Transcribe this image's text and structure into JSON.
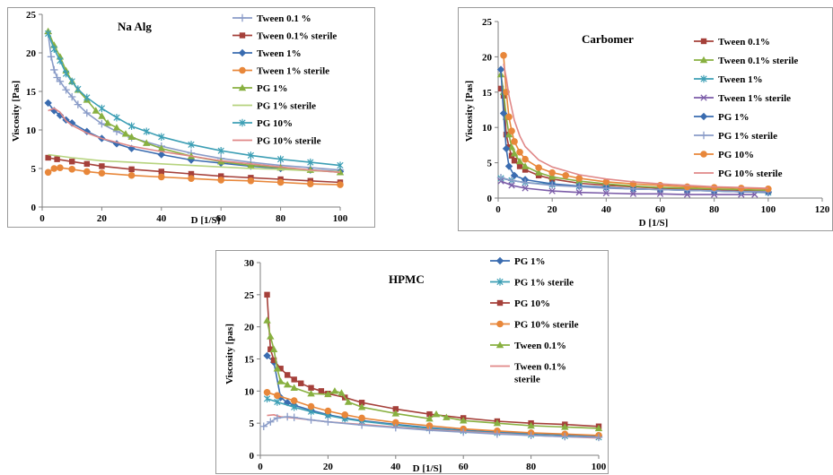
{
  "chart_data": [
    {
      "id": "naalg",
      "type": "line",
      "title": "Na Alg",
      "xlabel": "D [1/S]",
      "ylabel": "Viscosity [Pas]",
      "xlim": [
        0,
        100
      ],
      "ylim": [
        0,
        25
      ],
      "xticks": [
        0,
        20,
        40,
        60,
        80,
        100
      ],
      "yticks": [
        0,
        5,
        10,
        15,
        20,
        25
      ],
      "grid": false,
      "legend_position": "right",
      "series": [
        {
          "name": "Tween 0.1 %",
          "color": "#8a9cc8",
          "marker": "plus",
          "x": [
            2,
            3,
            4,
            5,
            6,
            8,
            10,
            12,
            15,
            20,
            25,
            30,
            40,
            50,
            60,
            70,
            80,
            90,
            100
          ],
          "y": [
            22.5,
            19.5,
            17.8,
            16.8,
            16.3,
            15.2,
            14.3,
            13.3,
            12.2,
            10.8,
            9.8,
            9.0,
            7.9,
            7.0,
            6.3,
            5.8,
            5.4,
            5.1,
            4.8
          ]
        },
        {
          "name": "Tween 0.1% sterile",
          "color": "#a5403a",
          "marker": "square",
          "x": [
            2,
            5,
            10,
            15,
            20,
            30,
            40,
            50,
            60,
            70,
            80,
            90,
            100
          ],
          "y": [
            6.4,
            6.2,
            5.9,
            5.6,
            5.3,
            4.9,
            4.6,
            4.3,
            4.0,
            3.8,
            3.6,
            3.4,
            3.2
          ]
        },
        {
          "name": "Tween 1%",
          "color": "#3a6cb0",
          "marker": "diamond",
          "x": [
            2,
            4,
            6,
            8,
            10,
            15,
            20,
            25,
            30,
            40,
            50,
            60,
            70,
            80,
            90,
            100
          ],
          "y": [
            13.5,
            12.5,
            11.9,
            11.3,
            10.9,
            9.8,
            8.9,
            8.2,
            7.6,
            6.8,
            6.1,
            5.7,
            5.3,
            5.0,
            4.8,
            4.6
          ]
        },
        {
          "name": "Tween 1% sterile",
          "color": "#e8873a",
          "marker": "circle",
          "x": [
            2,
            4,
            6,
            10,
            15,
            20,
            30,
            40,
            50,
            60,
            70,
            80,
            90,
            100
          ],
          "y": [
            4.5,
            5.0,
            5.1,
            4.9,
            4.6,
            4.4,
            4.1,
            3.9,
            3.7,
            3.5,
            3.4,
            3.2,
            3.0,
            2.9
          ]
        },
        {
          "name": "PG 1%",
          "color": "#88b040",
          "marker": "triangle",
          "x": [
            2,
            4,
            6,
            8,
            10,
            12,
            15,
            18,
            20,
            22,
            25,
            28,
            30,
            35,
            40,
            50,
            60,
            70,
            80,
            90,
            100
          ],
          "y": [
            22.8,
            21.0,
            19.5,
            17.7,
            16.3,
            15.2,
            13.9,
            12.5,
            11.8,
            10.9,
            10.3,
            9.5,
            9.1,
            8.3,
            7.6,
            6.6,
            5.9,
            5.4,
            5.1,
            4.8,
            4.5
          ]
        },
        {
          "name": "PG 1% sterile",
          "color": "#b6d37e",
          "marker": "none",
          "x": [
            2,
            10,
            20,
            30,
            40,
            50,
            60,
            70,
            80,
            90,
            100
          ],
          "y": [
            6.8,
            6.4,
            6.0,
            5.8,
            5.6,
            5.4,
            5.2,
            5.0,
            4.9,
            4.7,
            4.6
          ]
        },
        {
          "name": "PG 10%",
          "color": "#3d9fb5",
          "marker": "asterisk",
          "x": [
            2,
            4,
            6,
            8,
            10,
            12,
            15,
            20,
            25,
            30,
            35,
            40,
            50,
            60,
            70,
            80,
            90,
            100
          ],
          "y": [
            22.5,
            20.5,
            19.0,
            17.3,
            16.3,
            15.3,
            14.2,
            12.8,
            11.6,
            10.5,
            9.8,
            9.1,
            8.1,
            7.3,
            6.7,
            6.2,
            5.8,
            5.4
          ]
        },
        {
          "name": "PG 10% sterile",
          "color": "#e08888",
          "marker": "none",
          "x": [
            2,
            4,
            6,
            8,
            10,
            15,
            20,
            30,
            40,
            50,
            60,
            70,
            80,
            90,
            100
          ],
          "y": [
            12.5,
            12.8,
            12.3,
            11.2,
            10.6,
            9.6,
            8.9,
            7.9,
            7.2,
            6.6,
            6.0,
            5.6,
            5.2,
            4.8,
            4.5
          ]
        }
      ]
    },
    {
      "id": "carbomer",
      "type": "line",
      "title": "Carbomer",
      "xlabel": "D [1/S]",
      "ylabel": "Viscosity [Pas]",
      "xlim": [
        0,
        120
      ],
      "ylim": [
        0,
        25
      ],
      "xticks": [
        0,
        20,
        40,
        60,
        80,
        100,
        120
      ],
      "yticks": [
        0,
        5,
        10,
        15,
        20,
        25
      ],
      "grid": false,
      "legend_position": "right",
      "series": [
        {
          "name": "Tween 0.1%",
          "color": "#a5403a",
          "marker": "square",
          "x": [
            1,
            2,
            3,
            4,
            5,
            6,
            8,
            10,
            15,
            20,
            30,
            40,
            50,
            60,
            70,
            80,
            90,
            100
          ],
          "y": [
            15.5,
            14.5,
            9.0,
            7.2,
            6.0,
            5.3,
            4.5,
            4.0,
            3.2,
            2.7,
            2.1,
            1.8,
            1.6,
            1.4,
            1.3,
            1.2,
            1.1,
            1.0
          ]
        },
        {
          "name": "Tween 0.1% sterile",
          "color": "#88b040",
          "marker": "triangle",
          "x": [
            1,
            2,
            3,
            4,
            5,
            6,
            8,
            10,
            15,
            20,
            30,
            40,
            50,
            60,
            70,
            80,
            90,
            100
          ],
          "y": [
            17.5,
            15.0,
            11.5,
            9.0,
            7.2,
            6.3,
            5.2,
            4.5,
            3.6,
            3.0,
            2.4,
            2.0,
            1.7,
            1.5,
            1.4,
            1.3,
            1.2,
            1.1
          ]
        },
        {
          "name": "Tween 1%",
          "color": "#3d9fb5",
          "marker": "asterisk",
          "x": [
            1,
            5,
            10,
            20,
            30,
            40,
            50,
            60,
            70,
            80,
            90,
            100
          ],
          "y": [
            2.8,
            2.5,
            2.2,
            1.9,
            1.7,
            1.5,
            1.3,
            1.2,
            1.1,
            1.0,
            0.9,
            0.8
          ]
        },
        {
          "name": "Tween 1% sterile",
          "color": "#7b5ca8",
          "marker": "cross",
          "x": [
            1,
            5,
            10,
            20,
            30,
            40,
            50,
            60,
            70,
            80,
            90,
            95
          ],
          "y": [
            2.4,
            1.8,
            1.4,
            1.0,
            0.8,
            0.7,
            0.6,
            0.6,
            0.5,
            0.5,
            0.5,
            0.5
          ]
        },
        {
          "name": "PG 1%",
          "color": "#3a6cb0",
          "marker": "diamond",
          "x": [
            1,
            2,
            3,
            4,
            6,
            10,
            20,
            30,
            40,
            50,
            60,
            70,
            80,
            90,
            100
          ],
          "y": [
            18.2,
            12.0,
            7.0,
            4.5,
            3.2,
            2.6,
            2.0,
            1.7,
            1.5,
            1.3,
            1.2,
            1.1,
            1.0,
            0.9,
            0.8
          ]
        },
        {
          "name": "PG 1% sterile",
          "color": "#8a9cc8",
          "marker": "plus",
          "x": [
            1,
            5,
            10,
            20,
            30,
            40,
            50,
            60,
            70,
            80,
            90,
            100
          ],
          "y": [
            2.9,
            2.5,
            2.2,
            1.8,
            1.6,
            1.4,
            1.3,
            1.2,
            1.1,
            1.0,
            0.9,
            0.9
          ]
        },
        {
          "name": "PG 10%",
          "color": "#e8873a",
          "marker": "circle",
          "x": [
            2,
            3,
            4,
            5,
            6,
            8,
            10,
            15,
            20,
            25,
            30,
            40,
            50,
            60,
            70,
            80,
            90,
            100
          ],
          "y": [
            20.2,
            15.0,
            11.5,
            9.5,
            8.0,
            6.5,
            5.5,
            4.3,
            3.6,
            3.2,
            2.8,
            2.3,
            2.0,
            1.8,
            1.6,
            1.5,
            1.4,
            1.3
          ]
        },
        {
          "name": "PG 10% sterile",
          "color": "#e08888",
          "marker": "none",
          "x": [
            2,
            3,
            4,
            6,
            8,
            10,
            15,
            20,
            30,
            40,
            50,
            60,
            70,
            80,
            90,
            100
          ],
          "y": [
            19.0,
            17.0,
            14.5,
            11.0,
            8.8,
            7.3,
            5.4,
            4.4,
            3.3,
            2.7,
            2.3,
            2.0,
            1.8,
            1.6,
            1.5,
            1.4
          ]
        }
      ]
    },
    {
      "id": "hpmc",
      "type": "line",
      "title": "HPMC",
      "xlabel": "D [1/S]",
      "ylabel": "Viscosity [pas]",
      "xlim": [
        0,
        100
      ],
      "ylim": [
        0,
        30
      ],
      "xticks": [
        0,
        20,
        40,
        60,
        80,
        100
      ],
      "yticks": [
        0,
        5,
        10,
        15,
        20,
        25,
        30
      ],
      "grid": false,
      "legend_position": "right",
      "series": [
        {
          "name": "PG 1%",
          "color": "#3a6cb0",
          "marker": "diamond",
          "x": [
            2,
            4,
            6,
            8,
            10,
            15,
            20,
            25,
            30,
            40,
            50,
            60,
            70,
            80,
            90,
            100
          ],
          "y": [
            15.5,
            14.5,
            9.0,
            8.2,
            7.8,
            7.0,
            6.3,
            5.8,
            5.4,
            4.8,
            4.3,
            3.9,
            3.6,
            3.4,
            3.2,
            3.0
          ]
        },
        {
          "name": "PG 1% sterile",
          "color": "#3d9fb5",
          "marker": "asterisk",
          "x": [
            2,
            5,
            10,
            15,
            20,
            25,
            30,
            40,
            50,
            60,
            70,
            80,
            90,
            100
          ],
          "y": [
            8.8,
            8.3,
            7.5,
            6.8,
            6.2,
            5.7,
            5.3,
            4.7,
            4.2,
            3.8,
            3.5,
            3.2,
            3.0,
            2.8
          ]
        },
        {
          "name": "PG 10%",
          "color": "#a5403a",
          "marker": "square",
          "x": [
            2,
            3,
            4,
            6,
            8,
            10,
            12,
            15,
            18,
            20,
            25,
            30,
            40,
            50,
            60,
            70,
            80,
            90,
            100
          ],
          "y": [
            25.0,
            16.5,
            14.8,
            13.5,
            12.5,
            11.8,
            11.2,
            10.5,
            10.0,
            9.6,
            9.0,
            8.2,
            7.2,
            6.4,
            5.8,
            5.3,
            5.0,
            4.8,
            4.5
          ]
        },
        {
          "name": "PG 10% sterile",
          "color": "#e8873a",
          "marker": "circle",
          "x": [
            2,
            5,
            10,
            15,
            20,
            25,
            30,
            40,
            50,
            60,
            70,
            80,
            90,
            100
          ],
          "y": [
            9.8,
            9.3,
            8.5,
            7.6,
            6.9,
            6.3,
            5.8,
            5.1,
            4.6,
            4.1,
            3.8,
            3.5,
            3.3,
            3.1
          ]
        },
        {
          "name": "Tween 0.1%",
          "color": "#88b040",
          "marker": "triangle",
          "x": [
            2,
            3,
            4,
            5,
            6,
            8,
            10,
            15,
            20,
            22,
            24,
            26,
            30,
            40,
            50,
            52,
            55,
            60,
            70,
            80,
            90,
            100
          ],
          "y": [
            21.0,
            18.5,
            16.5,
            13.5,
            11.5,
            11.0,
            10.5,
            9.6,
            9.5,
            10.0,
            9.7,
            8.3,
            7.5,
            6.5,
            5.7,
            6.4,
            5.9,
            5.4,
            5.0,
            4.6,
            4.4,
            4.2
          ]
        },
        {
          "name": "Tween 0.1% sterile",
          "color": "#e08888",
          "marker": "none",
          "x": [
            2,
            4,
            6,
            10,
            15,
            20,
            30,
            40,
            50,
            60,
            70,
            80,
            90,
            100
          ],
          "y": [
            6.2,
            6.3,
            6.0,
            5.8,
            5.5,
            5.2,
            4.8,
            4.4,
            4.0,
            3.7,
            3.4,
            3.1,
            2.9,
            2.7
          ]
        },
        {
          "name": "",
          "color": "#8a9cc8",
          "marker": "plus",
          "x": [
            1,
            3,
            5,
            8,
            10,
            15,
            20,
            30,
            40,
            50,
            60,
            70,
            80,
            90,
            100
          ],
          "y": [
            4.5,
            5.2,
            5.8,
            6.0,
            5.9,
            5.5,
            5.2,
            4.7,
            4.3,
            3.9,
            3.6,
            3.3,
            3.1,
            2.9,
            2.8
          ]
        }
      ]
    }
  ]
}
